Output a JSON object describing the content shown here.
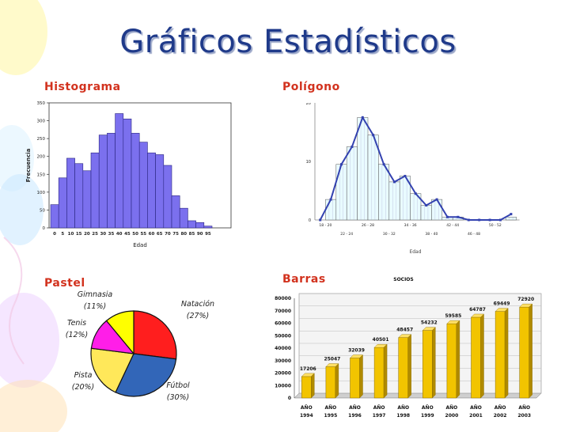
{
  "title": "Gráficos Estadísticos",
  "colors": {
    "title": "#1f3a8a",
    "label": "#d2321e",
    "hist_bar": "#7b70ee",
    "poly_bar": "#e9fbff",
    "poly_line": "#3342b0",
    "bar_fill": "#f2c400"
  },
  "sections": {
    "histogram": "Histograma",
    "polygon": "Polígono",
    "pie": "Pastel",
    "bars": "Barras"
  },
  "chart_data": [
    {
      "type": "bar",
      "title": "",
      "xlabel": "Edad",
      "ylabel": "Frecuencia",
      "ylim": [
        0,
        350
      ],
      "yticks": [
        0,
        50,
        100,
        150,
        200,
        250,
        300,
        350
      ],
      "xticks": [
        "0",
        "5",
        "10",
        "15",
        "20",
        "25",
        "30",
        "35",
        "40",
        "45",
        "50",
        "55",
        "60",
        "65",
        "70",
        "75",
        "80",
        "85",
        "90",
        "95"
      ],
      "values": [
        65,
        140,
        195,
        180,
        160,
        210,
        260,
        265,
        320,
        305,
        265,
        240,
        210,
        205,
        175,
        90,
        55,
        20,
        15,
        5
      ]
    },
    {
      "type": "line",
      "title": "",
      "xlabel": "Edad",
      "ylim": [
        0,
        20
      ],
      "yticks": [
        "0",
        "10",
        "20"
      ],
      "xticks_top": [
        "18 - 20",
        "26 - 28",
        "34 - 36",
        "42 - 44",
        "50 - 52"
      ],
      "xticks_bottom": [
        "22 - 24",
        "30 - 32",
        "38 - 40",
        "46 - 48"
      ],
      "bars": [
        0,
        3.5,
        9.5,
        12.5,
        17.5,
        14.5,
        9.5,
        6.5,
        7.5,
        4.5,
        2.5,
        3.5,
        0.5,
        0.5,
        0,
        0,
        0,
        0,
        0.5
      ],
      "line": [
        0,
        3.5,
        9.5,
        12.5,
        17.5,
        14.5,
        9.5,
        6.5,
        7.5,
        4.5,
        2.5,
        3.5,
        0.5,
        0.5,
        0,
        0,
        0,
        0,
        1
      ]
    },
    {
      "type": "pie",
      "title": "",
      "slices": [
        {
          "name": "Natación",
          "pct": 27,
          "label": "(27%)",
          "color": "#ff1e1e"
        },
        {
          "name": "Fútbol",
          "pct": 30,
          "label": "(30%)",
          "color": "#3266b8"
        },
        {
          "name": "Pista",
          "pct": 20,
          "label": "(20%)",
          "color": "#ffe85a"
        },
        {
          "name": "Tenis",
          "pct": 12,
          "label": "(12%)",
          "color": "#ff1ee8"
        },
        {
          "name": "Gimnasia",
          "pct": 11,
          "label": "(11%)",
          "color": "#ffff00"
        }
      ]
    },
    {
      "type": "bar",
      "title": "SOCIOS",
      "ylim": [
        0,
        80000
      ],
      "yticks": [
        "0",
        "10000",
        "20000",
        "30000",
        "40000",
        "50000",
        "60000",
        "70000",
        "80000"
      ],
      "categories": [
        "AÑO 1994",
        "AÑO 1995",
        "AÑO 1996",
        "AÑO 1997",
        "AÑO 1998",
        "AÑO 1999",
        "AÑO 2000",
        "AÑO 2001",
        "AÑO 2002",
        "AÑO 2003"
      ],
      "cat_top": "AÑO",
      "cat_years": [
        "1994",
        "1995",
        "1996",
        "1997",
        "1998",
        "1999",
        "2000",
        "2001",
        "2002",
        "2003"
      ],
      "values": [
        17206,
        25047,
        32039,
        40501,
        48457,
        54232,
        59585,
        64787,
        69449,
        72920
      ],
      "value_labels": [
        "17206",
        "25047",
        "32039",
        "40501",
        "48457",
        "54232",
        "59585",
        "64787",
        "69449",
        "72920"
      ]
    }
  ]
}
